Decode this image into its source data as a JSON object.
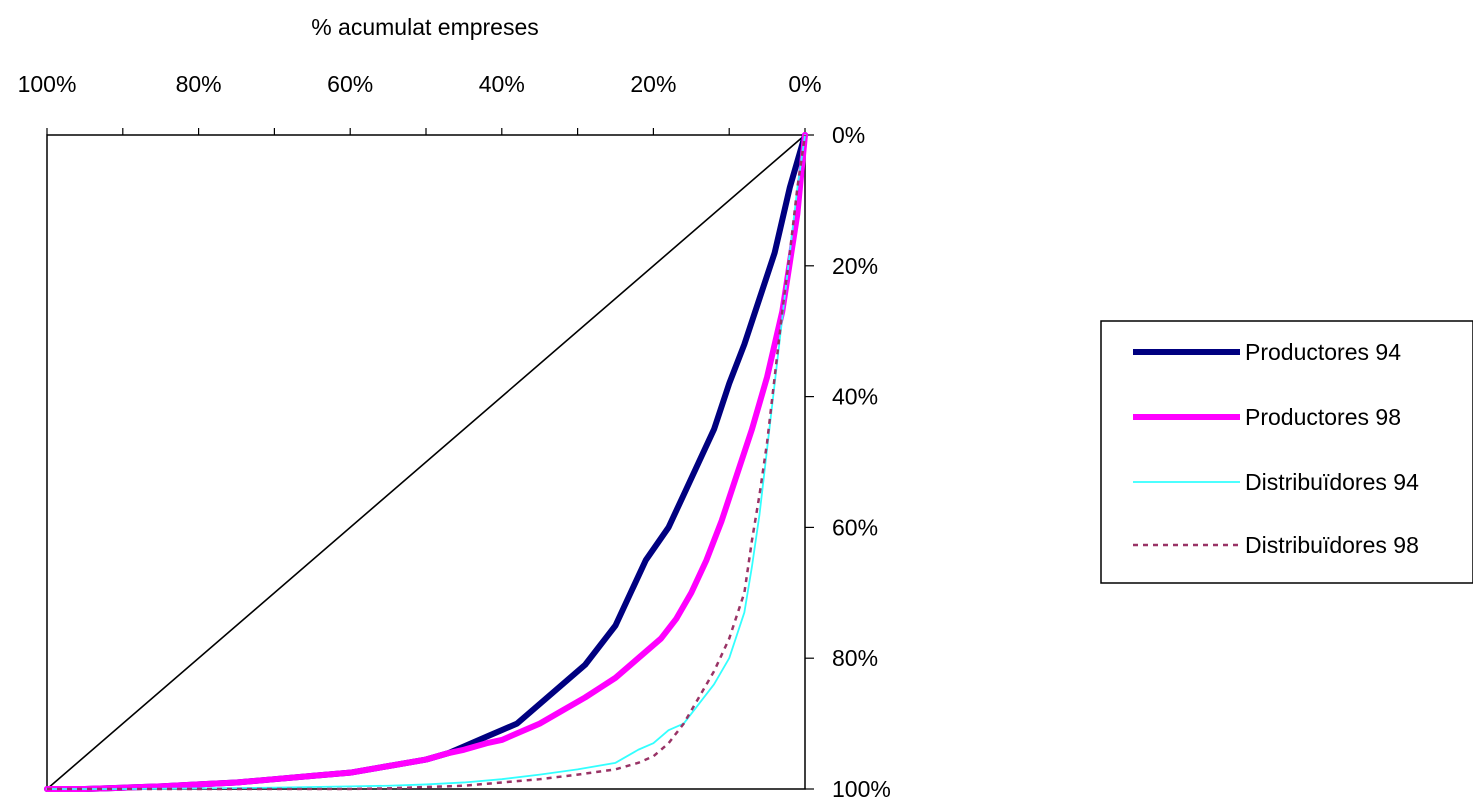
{
  "chart_data": {
    "type": "line",
    "xlabel": "% acumulat empreses",
    "ylabel": "",
    "x_ticks": [
      "100%",
      "80%",
      "60%",
      "40%",
      "20%",
      "0%"
    ],
    "y_ticks": [
      "0%",
      "20%",
      "40%",
      "60%",
      "80%",
      "100%"
    ],
    "xlim": [
      100,
      0
    ],
    "ylim": [
      0,
      100
    ],
    "legend_position": "right",
    "reference_line": {
      "x": [
        100,
        0
      ],
      "y": [
        100,
        0
      ],
      "color": "#000000"
    },
    "series": [
      {
        "name": "Productores 94",
        "color": "#000080",
        "style": "solid-thick",
        "x": [
          100,
          98,
          95,
          90,
          85,
          80,
          75,
          70,
          65,
          60,
          55,
          50,
          47,
          45,
          42,
          40,
          38,
          35,
          32,
          29,
          27,
          25,
          23,
          21,
          18,
          16,
          14,
          12,
          10,
          8,
          6,
          4,
          2,
          0
        ],
        "y": [
          100,
          100,
          100,
          99.8,
          99.6,
          99.3,
          99,
          98.5,
          98,
          97.5,
          96.5,
          95.5,
          94.5,
          93.5,
          92,
          91,
          90,
          87,
          84,
          81,
          78,
          75,
          70,
          65,
          60,
          55,
          50,
          45,
          38,
          32,
          25,
          18,
          8,
          0
        ]
      },
      {
        "name": "Productores 98",
        "color": "#ff00ff",
        "style": "solid-thick",
        "x": [
          100,
          98,
          95,
          90,
          85,
          80,
          75,
          70,
          65,
          60,
          55,
          50,
          47,
          45,
          42,
          40,
          38,
          35,
          32,
          29,
          27,
          25,
          22,
          19,
          17,
          15,
          13,
          11,
          9,
          7,
          5,
          3,
          1,
          0
        ],
        "y": [
          100,
          100,
          100,
          99.8,
          99.6,
          99.3,
          99,
          98.5,
          98,
          97.5,
          96.5,
          95.5,
          94.5,
          94,
          93,
          92.5,
          91.5,
          90,
          88,
          86,
          84.5,
          83,
          80,
          77,
          74,
          70,
          65,
          59,
          52,
          45,
          37,
          27,
          12,
          0
        ]
      },
      {
        "name": "Distribuïdores 94",
        "color": "#33ffff",
        "style": "solid-thin",
        "x": [
          100,
          95,
          90,
          80,
          70,
          60,
          55,
          50,
          45,
          40,
          35,
          30,
          25,
          22,
          20,
          18,
          16,
          14,
          12,
          10,
          8,
          7,
          6,
          5,
          4,
          3,
          2,
          1,
          0
        ],
        "y": [
          100,
          100,
          100,
          99.9,
          99.8,
          99.6,
          99.5,
          99.3,
          99,
          98.5,
          97.8,
          97,
          96,
          94,
          93,
          91,
          90,
          87,
          84,
          80,
          73,
          66,
          58,
          48,
          38,
          28,
          18,
          8,
          0
        ]
      },
      {
        "name": "Distribuïdores 98",
        "color": "#993366",
        "style": "dotted",
        "x": [
          100,
          95,
          90,
          80,
          70,
          60,
          55,
          50,
          45,
          40,
          35,
          30,
          25,
          22,
          20,
          18,
          16,
          14,
          12,
          10,
          8,
          7,
          6,
          5,
          4,
          3,
          2,
          1,
          0
        ],
        "y": [
          100,
          100,
          100,
          100,
          100,
          100,
          99.9,
          99.7,
          99.5,
          99,
          98.5,
          97.8,
          97,
          96,
          95,
          93,
          90,
          86,
          82,
          77,
          70,
          62,
          55,
          47,
          37,
          27,
          18,
          8,
          0
        ]
      }
    ]
  }
}
